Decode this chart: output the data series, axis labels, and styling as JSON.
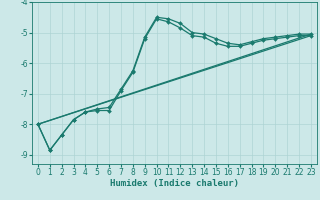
{
  "xlabel": "Humidex (Indice chaleur)",
  "background_color": "#cce8e8",
  "grid_color": "#aed4d4",
  "line_color": "#1a7a6e",
  "xlim": [
    -0.5,
    23.5
  ],
  "ylim": [
    -9.3,
    -4.0
  ],
  "yticks": [
    -9,
    -8,
    -7,
    -6,
    -5,
    -4
  ],
  "xticks": [
    0,
    1,
    2,
    3,
    4,
    5,
    6,
    7,
    8,
    9,
    10,
    11,
    12,
    13,
    14,
    15,
    16,
    17,
    18,
    19,
    20,
    21,
    22,
    23
  ],
  "curve1_x": [
    0,
    1,
    2,
    3,
    4,
    5,
    6,
    7,
    8,
    9,
    10,
    11,
    12,
    13,
    14,
    15,
    16,
    17,
    18,
    19,
    20,
    21,
    22,
    23
  ],
  "curve1_y": [
    -8.0,
    -8.85,
    -8.35,
    -7.85,
    -7.6,
    -7.55,
    -7.55,
    -6.9,
    -6.3,
    -5.2,
    -4.55,
    -4.65,
    -4.85,
    -5.1,
    -5.15,
    -5.35,
    -5.45,
    -5.45,
    -5.35,
    -5.25,
    -5.2,
    -5.15,
    -5.1,
    -5.1
  ],
  "curve2_x": [
    0,
    1,
    2,
    3,
    4,
    5,
    6,
    7,
    8,
    9,
    10,
    11,
    12,
    13,
    14,
    15,
    16,
    17,
    18,
    19,
    20,
    21,
    22,
    23
  ],
  "curve2_y": [
    -8.0,
    -8.85,
    -8.35,
    -7.85,
    -7.6,
    -7.5,
    -7.45,
    -6.85,
    -6.25,
    -5.15,
    -4.5,
    -4.55,
    -4.7,
    -5.0,
    -5.05,
    -5.2,
    -5.35,
    -5.4,
    -5.3,
    -5.2,
    -5.15,
    -5.1,
    -5.05,
    -5.05
  ],
  "line1_x": [
    0,
    23
  ],
  "line1_y": [
    -8.0,
    -5.05
  ],
  "line2_x": [
    0,
    23
  ],
  "line2_y": [
    -8.0,
    -5.1
  ],
  "tick_fontsize": 5.5,
  "axis_fontsize": 6.5
}
